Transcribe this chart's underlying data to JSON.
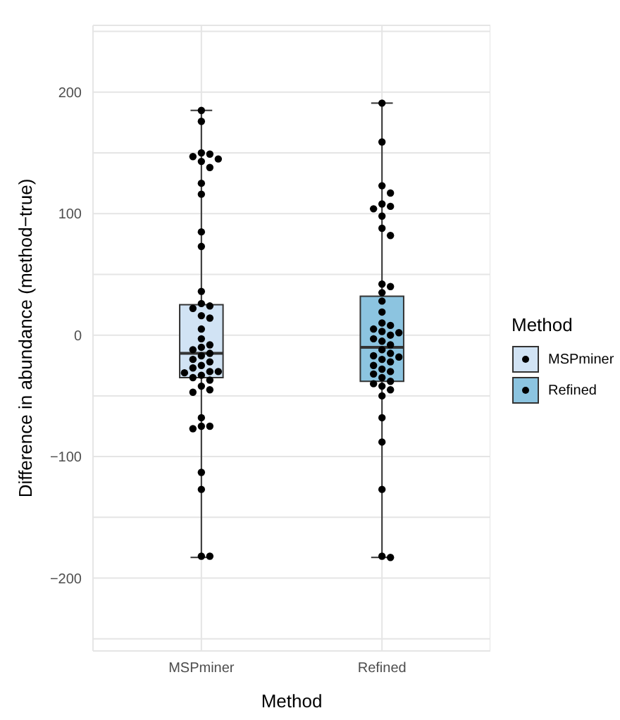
{
  "chart_data": {
    "type": "box",
    "categories": [
      "MSPminer",
      "Refined"
    ],
    "xlabel": "Method",
    "ylabel": "Difference in abundance (method−true)",
    "legend_title": "Method",
    "legend": "right",
    "grid": true,
    "ylim": [
      -260,
      255
    ],
    "yticks": [
      {
        "value": -250,
        "label": null
      },
      {
        "value": -200,
        "label": "−200"
      },
      {
        "value": -150,
        "label": null
      },
      {
        "value": -100,
        "label": "−100"
      },
      {
        "value": -50,
        "label": null
      },
      0,
      {
        "value": 50,
        "label": null
      },
      100,
      {
        "value": 150,
        "label": null
      },
      200,
      {
        "value": 250,
        "label": null
      }
    ],
    "series": [
      {
        "name": "MSPminer",
        "color": "#d1e3f4",
        "boxes": [
          {
            "low": -183,
            "q1": -35,
            "median": -15,
            "q3": 25,
            "high": 185
          },
          null
        ]
      },
      {
        "name": "Refined",
        "color": "#8cc4e0",
        "boxes": [
          null,
          {
            "low": -183,
            "q1": -38,
            "median": -10,
            "q3": 32,
            "high": 191
          }
        ]
      },
      {
        "type": "scatter",
        "color": "#000000",
        "marker": "circle",
        "x": [
          "MSPminer",
          "MSPminer",
          "MSPminer",
          "MSPminer",
          "MSPminer",
          "MSPminer",
          "MSPminer",
          "MSPminer",
          "MSPminer",
          "MSPminer",
          "MSPminer",
          "MSPminer",
          "MSPminer",
          "MSPminer",
          "MSPminer",
          "MSPminer",
          "MSPminer",
          "MSPminer",
          "MSPminer",
          "MSPminer",
          "MSPminer",
          "MSPminer",
          "MSPminer",
          "MSPminer",
          "MSPminer",
          "MSPminer",
          "MSPminer",
          "MSPminer",
          "MSPminer",
          "MSPminer",
          "MSPminer",
          "MSPminer",
          "MSPminer",
          "MSPminer",
          "MSPminer",
          "MSPminer",
          "MSPminer",
          "MSPminer",
          "MSPminer",
          "MSPminer",
          "MSPminer",
          "MSPminer",
          "MSPminer",
          "MSPminer",
          "MSPminer",
          "MSPminer",
          "Refined",
          "Refined",
          "Refined",
          "Refined",
          "Refined",
          "Refined",
          "Refined",
          "Refined",
          "Refined",
          "Refined",
          "Refined",
          "Refined",
          "Refined",
          "Refined",
          "Refined",
          "Refined",
          "Refined",
          "Refined",
          "Refined",
          "Refined",
          "Refined",
          "Refined",
          "Refined",
          "Refined",
          "Refined",
          "Refined",
          "Refined",
          "Refined",
          "Refined",
          "Refined",
          "Refined",
          "Refined",
          "Refined",
          "Refined",
          "Refined",
          "Refined",
          "Refined",
          "Refined",
          "Refined",
          "Refined",
          "Refined",
          "Refined",
          "Refined",
          "Refined",
          "Refined"
        ],
        "values": [
          185,
          176,
          150,
          149,
          147,
          145,
          143,
          138,
          125,
          116,
          85,
          73,
          36,
          26,
          24,
          22,
          16,
          14,
          5,
          -3,
          -10,
          -8,
          -12,
          -15,
          -17,
          -20,
          -22,
          -25,
          -27,
          -30,
          -30,
          -31,
          -33,
          -35,
          -37,
          -42,
          -45,
          -47,
          -68,
          -75,
          -75,
          -77,
          -113,
          -127,
          -182,
          -182,
          191,
          159,
          123,
          117,
          108,
          106,
          104,
          98,
          88,
          82,
          42,
          40,
          35,
          28,
          19,
          10,
          8,
          5,
          3,
          2,
          0,
          -3,
          -5,
          -8,
          -12,
          -15,
          -17,
          -18,
          -20,
          -22,
          -25,
          -28,
          -30,
          -32,
          -35,
          -38,
          -40,
          -42,
          -45,
          -50,
          -68,
          -88,
          -127,
          -182,
          -183
        ]
      }
    ]
  }
}
